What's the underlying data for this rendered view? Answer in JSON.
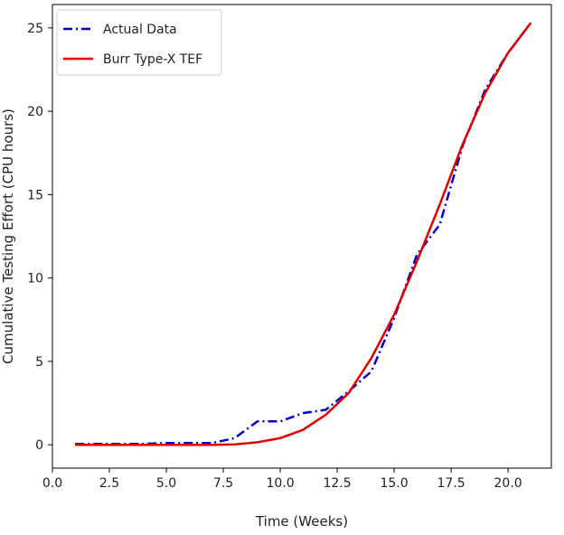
{
  "chart_data": {
    "type": "line",
    "title": "",
    "xlabel": "Time (Weeks)",
    "ylabel": "Cumulative Testing Effort (CPU hours)",
    "xlim": [
      0,
      21.9
    ],
    "ylim": [
      -1.4,
      26.4
    ],
    "xticks": [
      0,
      2.5,
      5,
      7.5,
      10,
      12.5,
      15,
      17.5,
      20
    ],
    "xtick_labels": [
      "0.0",
      "2.5",
      "5.0",
      "7.5",
      "10.0",
      "12.5",
      "15.0",
      "17.5",
      "20.0"
    ],
    "yticks": [
      0,
      5,
      10,
      15,
      20,
      25
    ],
    "ytick_labels": [
      "0",
      "5",
      "10",
      "15",
      "20",
      "25"
    ],
    "grid": false,
    "legend_position": "top-left",
    "series": [
      {
        "name": "Actual Data",
        "color": "#0000cc",
        "style": "dash-dot",
        "x": [
          1,
          2,
          3,
          4,
          5,
          6,
          7,
          8,
          9,
          10,
          11,
          12,
          13,
          14,
          15,
          16,
          17,
          18,
          19,
          20,
          21
        ],
        "y": [
          0.05,
          0.05,
          0.05,
          0.05,
          0.1,
          0.1,
          0.1,
          0.4,
          1.4,
          1.4,
          1.9,
          2.1,
          3.2,
          4.4,
          7.6,
          11.4,
          13.2,
          17.9,
          21.3,
          23.5,
          25.3
        ]
      },
      {
        "name": "Burr Type-X TEF",
        "color": "#e00000",
        "style": "solid",
        "x": [
          1,
          2,
          3,
          4,
          5,
          6,
          7,
          8,
          9,
          10,
          11,
          12,
          13,
          14,
          15,
          16,
          17,
          18,
          19,
          20,
          21
        ],
        "y": [
          0,
          0,
          0,
          0,
          0,
          0,
          0,
          0.02,
          0.15,
          0.4,
          0.9,
          1.8,
          3.1,
          5.2,
          7.8,
          11.0,
          14.4,
          18.0,
          21.1,
          23.5,
          25.3
        ]
      }
    ]
  }
}
